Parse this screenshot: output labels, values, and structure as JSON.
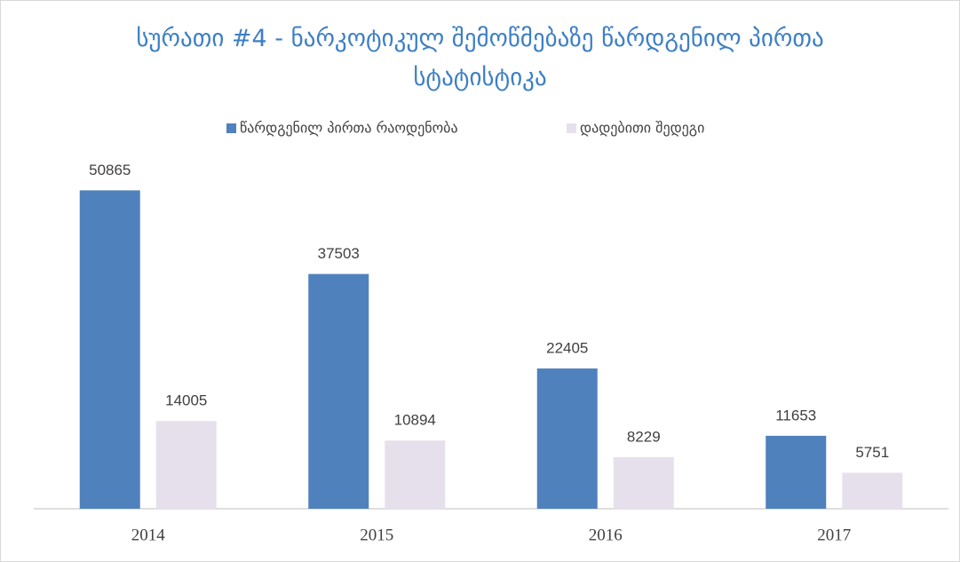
{
  "chart_data": {
    "type": "bar",
    "title": "სურათი #4 - ნარკოტიკულ შემოწმებაზე წარდგენილ პირთა სტატისტიკა",
    "categories": [
      "2014",
      "2015",
      "2016",
      "2017"
    ],
    "series": [
      {
        "name": "წარდგენილ პირთა რაოდენობა",
        "color": "#4f81bd",
        "values": [
          50865,
          37503,
          22405,
          11653
        ]
      },
      {
        "name": "დადებითი შედეგი",
        "color": "#e6e0ec",
        "values": [
          14005,
          10894,
          8229,
          5751
        ]
      }
    ],
    "ylim": [
      0,
      60000
    ],
    "legend": "top"
  }
}
